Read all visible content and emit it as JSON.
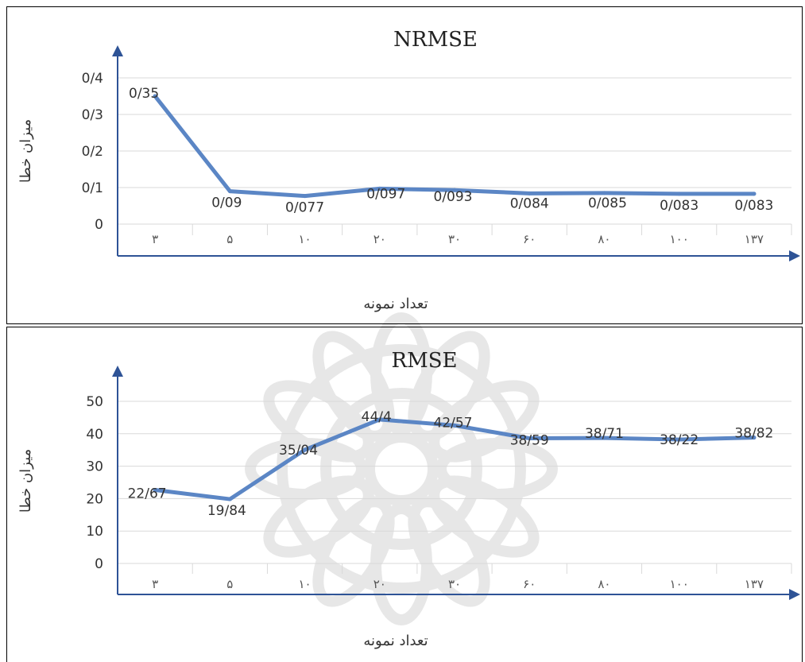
{
  "chart_data": [
    {
      "type": "line",
      "title": "NRMSE",
      "xlabel": "تعداد نمونه",
      "ylabel": "میزان خطا",
      "categories": [
        "۳",
        "۵",
        "۱۰",
        "۲۰",
        "۳۰",
        "۶۰",
        "۸۰",
        "۱۰۰",
        "۱۳۷"
      ],
      "values": [
        0.35,
        0.09,
        0.077,
        0.097,
        0.093,
        0.084,
        0.085,
        0.083,
        0.083
      ],
      "data_labels": [
        "0/35",
        "0/09",
        "0/077",
        "0/097",
        "0/093",
        "0/084",
        "0/085",
        "0/083",
        "0/083"
      ],
      "y_ticks": [
        0,
        0.1,
        0.2,
        0.3,
        0.4
      ],
      "y_tick_labels": [
        "0",
        "0/1",
        "0/2",
        "0/3",
        "0/4"
      ],
      "ylim": [
        0,
        0.4
      ],
      "grid": true,
      "color": "#5b86c5"
    },
    {
      "type": "line",
      "title": "RMSE",
      "xlabel": "تعداد نمونه",
      "ylabel": "میزان خطا",
      "categories": [
        "۳",
        "۵",
        "۱۰",
        "۲۰",
        "۳۰",
        "۶۰",
        "۸۰",
        "۱۰۰",
        "۱۳۷"
      ],
      "values": [
        22.67,
        19.84,
        35.04,
        44.4,
        42.57,
        38.59,
        38.71,
        38.22,
        38.82
      ],
      "data_labels": [
        "22/67",
        "19/84",
        "35/04",
        "44/4",
        "42/57",
        "38/59",
        "38/71",
        "38/22",
        "38/82"
      ],
      "y_ticks": [
        0,
        10,
        20,
        30,
        40,
        50
      ],
      "y_tick_labels": [
        "0",
        "10",
        "20",
        "30",
        "40",
        "50"
      ],
      "ylim": [
        0,
        50
      ],
      "grid": true,
      "color": "#5b86c5"
    }
  ]
}
